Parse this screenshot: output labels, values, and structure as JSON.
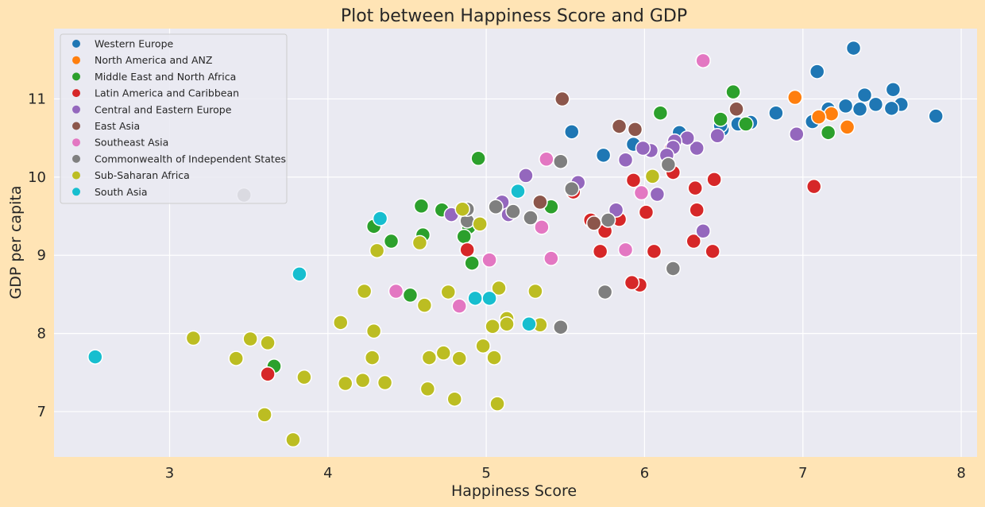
{
  "chart_data": {
    "type": "scatter",
    "title": "Plot between Happiness Score and GDP",
    "xlabel": "Happiness Score",
    "ylabel": "GDP per capita",
    "xlim": [
      2.27,
      8.1
    ],
    "ylim": [
      6.42,
      11.9
    ],
    "xticks": [
      3,
      4,
      5,
      6,
      7,
      8
    ],
    "yticks": [
      7,
      8,
      9,
      10,
      11
    ],
    "grid": true,
    "legend_position": "top-left",
    "series": [
      {
        "name": "Western Europe",
        "color": "#1f77b4",
        "points": [
          [
            7.84,
            10.78
          ],
          [
            7.62,
            10.93
          ],
          [
            7.57,
            11.12
          ],
          [
            7.56,
            10.88
          ],
          [
            7.46,
            10.93
          ],
          [
            7.39,
            11.05
          ],
          [
            7.36,
            10.87
          ],
          [
            7.32,
            11.65
          ],
          [
            7.27,
            10.91
          ],
          [
            7.16,
            10.87
          ],
          [
            7.09,
            11.35
          ],
          [
            7.06,
            10.71
          ],
          [
            6.83,
            10.82
          ],
          [
            6.67,
            10.7
          ],
          [
            6.59,
            10.68
          ],
          [
            6.49,
            10.61
          ],
          [
            6.48,
            10.66
          ],
          [
            6.22,
            10.57
          ],
          [
            5.93,
            10.42
          ],
          [
            5.74,
            10.28
          ],
          [
            5.54,
            10.58
          ]
        ]
      },
      {
        "name": "North America and ANZ",
        "color": "#ff7f0e",
        "points": [
          [
            7.28,
            10.64
          ],
          [
            7.18,
            10.81
          ],
          [
            7.1,
            10.77
          ],
          [
            6.95,
            11.02
          ]
        ]
      },
      {
        "name": "Middle East and North Africa",
        "color": "#2ca02c",
        "points": [
          [
            7.16,
            10.57
          ],
          [
            6.64,
            10.68
          ],
          [
            6.56,
            11.09
          ],
          [
            6.48,
            10.74
          ],
          [
            6.1,
            10.82
          ],
          [
            5.41,
            9.62
          ],
          [
            4.95,
            10.24
          ],
          [
            4.91,
            8.9
          ],
          [
            4.89,
            9.36
          ],
          [
            4.86,
            9.24
          ],
          [
            4.72,
            9.58
          ],
          [
            4.6,
            9.26
          ],
          [
            4.59,
            9.63
          ],
          [
            4.52,
            8.49
          ],
          [
            4.4,
            9.18
          ],
          [
            4.29,
            9.37
          ],
          [
            3.66,
            7.58
          ]
        ]
      },
      {
        "name": "Latin America and Caribbean",
        "color": "#d62728",
        "points": [
          [
            7.07,
            9.88
          ],
          [
            6.44,
            9.97
          ],
          [
            6.43,
            9.05
          ],
          [
            6.33,
            9.58
          ],
          [
            6.32,
            9.86
          ],
          [
            6.31,
            9.18
          ],
          [
            6.18,
            10.06
          ],
          [
            6.17,
            10.37
          ],
          [
            6.06,
            9.05
          ],
          [
            6.01,
            9.55
          ],
          [
            5.97,
            8.62
          ],
          [
            5.93,
            9.96
          ],
          [
            5.92,
            8.65
          ],
          [
            5.84,
            9.46
          ],
          [
            5.75,
            9.31
          ],
          [
            5.72,
            9.05
          ],
          [
            5.66,
            9.45
          ],
          [
            5.55,
            9.81
          ],
          [
            4.88,
            9.07
          ],
          [
            3.62,
            7.48
          ]
        ]
      },
      {
        "name": "Central and Eastern Europe",
        "color": "#9467bd",
        "points": [
          [
            6.96,
            10.55
          ],
          [
            6.46,
            10.53
          ],
          [
            6.37,
            9.31
          ],
          [
            6.33,
            10.37
          ],
          [
            6.27,
            10.5
          ],
          [
            6.19,
            10.46
          ],
          [
            6.18,
            10.38
          ],
          [
            6.14,
            10.28
          ],
          [
            6.08,
            9.78
          ],
          [
            6.04,
            10.34
          ],
          [
            5.99,
            10.37
          ],
          [
            5.88,
            10.22
          ],
          [
            5.82,
            9.58
          ],
          [
            5.58,
            9.93
          ],
          [
            5.14,
            9.52
          ],
          [
            5.1,
            9.68
          ],
          [
            4.78,
            9.52
          ],
          [
            5.25,
            10.02
          ]
        ]
      },
      {
        "name": "East Asia",
        "color": "#8c564b",
        "points": [
          [
            6.58,
            10.87
          ],
          [
            5.94,
            10.61
          ],
          [
            5.84,
            10.65
          ],
          [
            5.48,
            11.0
          ],
          [
            5.34,
            9.68
          ],
          [
            5.68,
            9.41
          ]
        ]
      },
      {
        "name": "Southeast Asia",
        "color": "#e377c2",
        "points": [
          [
            6.37,
            11.49
          ],
          [
            5.98,
            9.8
          ],
          [
            5.88,
            9.07
          ],
          [
            5.38,
            10.23
          ],
          [
            5.35,
            9.36
          ],
          [
            5.41,
            8.96
          ],
          [
            5.02,
            8.94
          ],
          [
            4.83,
            8.35
          ],
          [
            4.43,
            8.54
          ]
        ]
      },
      {
        "name": "Commonwealth of Independent States",
        "color": "#7f7f7f",
        "points": [
          [
            6.18,
            8.83
          ],
          [
            6.15,
            10.16
          ],
          [
            5.77,
            9.45
          ],
          [
            5.75,
            8.53
          ],
          [
            5.54,
            9.85
          ],
          [
            5.47,
            10.2
          ],
          [
            5.47,
            8.08
          ],
          [
            5.28,
            9.48
          ],
          [
            5.17,
            9.56
          ],
          [
            5.06,
            9.62
          ],
          [
            4.88,
            9.44
          ],
          [
            4.88,
            9.59
          ],
          [
            3.47,
            9.77
          ]
        ]
      },
      {
        "name": "Sub-Saharan Africa",
        "color": "#bcbd22",
        "points": [
          [
            6.05,
            10.01
          ],
          [
            5.34,
            8.11
          ],
          [
            5.31,
            8.54
          ],
          [
            5.13,
            8.19
          ],
          [
            5.13,
            8.12
          ],
          [
            5.08,
            8.58
          ],
          [
            5.07,
            7.1
          ],
          [
            5.05,
            7.69
          ],
          [
            5.04,
            8.09
          ],
          [
            4.98,
            7.84
          ],
          [
            4.96,
            9.4
          ],
          [
            4.85,
            9.59
          ],
          [
            4.83,
            7.68
          ],
          [
            4.8,
            7.16
          ],
          [
            4.76,
            8.53
          ],
          [
            4.73,
            7.75
          ],
          [
            4.64,
            7.69
          ],
          [
            4.63,
            7.29
          ],
          [
            4.61,
            8.36
          ],
          [
            4.58,
            9.16
          ],
          [
            4.36,
            7.37
          ],
          [
            4.31,
            9.06
          ],
          [
            4.29,
            8.03
          ],
          [
            4.28,
            7.69
          ],
          [
            4.23,
            8.54
          ],
          [
            4.22,
            7.4
          ],
          [
            4.11,
            7.36
          ],
          [
            4.08,
            8.14
          ],
          [
            3.85,
            7.44
          ],
          [
            3.78,
            6.64
          ],
          [
            3.62,
            7.88
          ],
          [
            3.6,
            6.96
          ],
          [
            3.51,
            7.93
          ],
          [
            3.42,
            7.68
          ],
          [
            3.15,
            7.94
          ]
        ]
      },
      {
        "name": "South Asia",
        "color": "#17becf",
        "points": [
          [
            5.2,
            9.82
          ],
          [
            5.27,
            8.12
          ],
          [
            5.02,
            8.45
          ],
          [
            4.93,
            8.45
          ],
          [
            4.33,
            9.47
          ],
          [
            3.82,
            8.76
          ],
          [
            2.53,
            7.7
          ]
        ]
      }
    ]
  }
}
